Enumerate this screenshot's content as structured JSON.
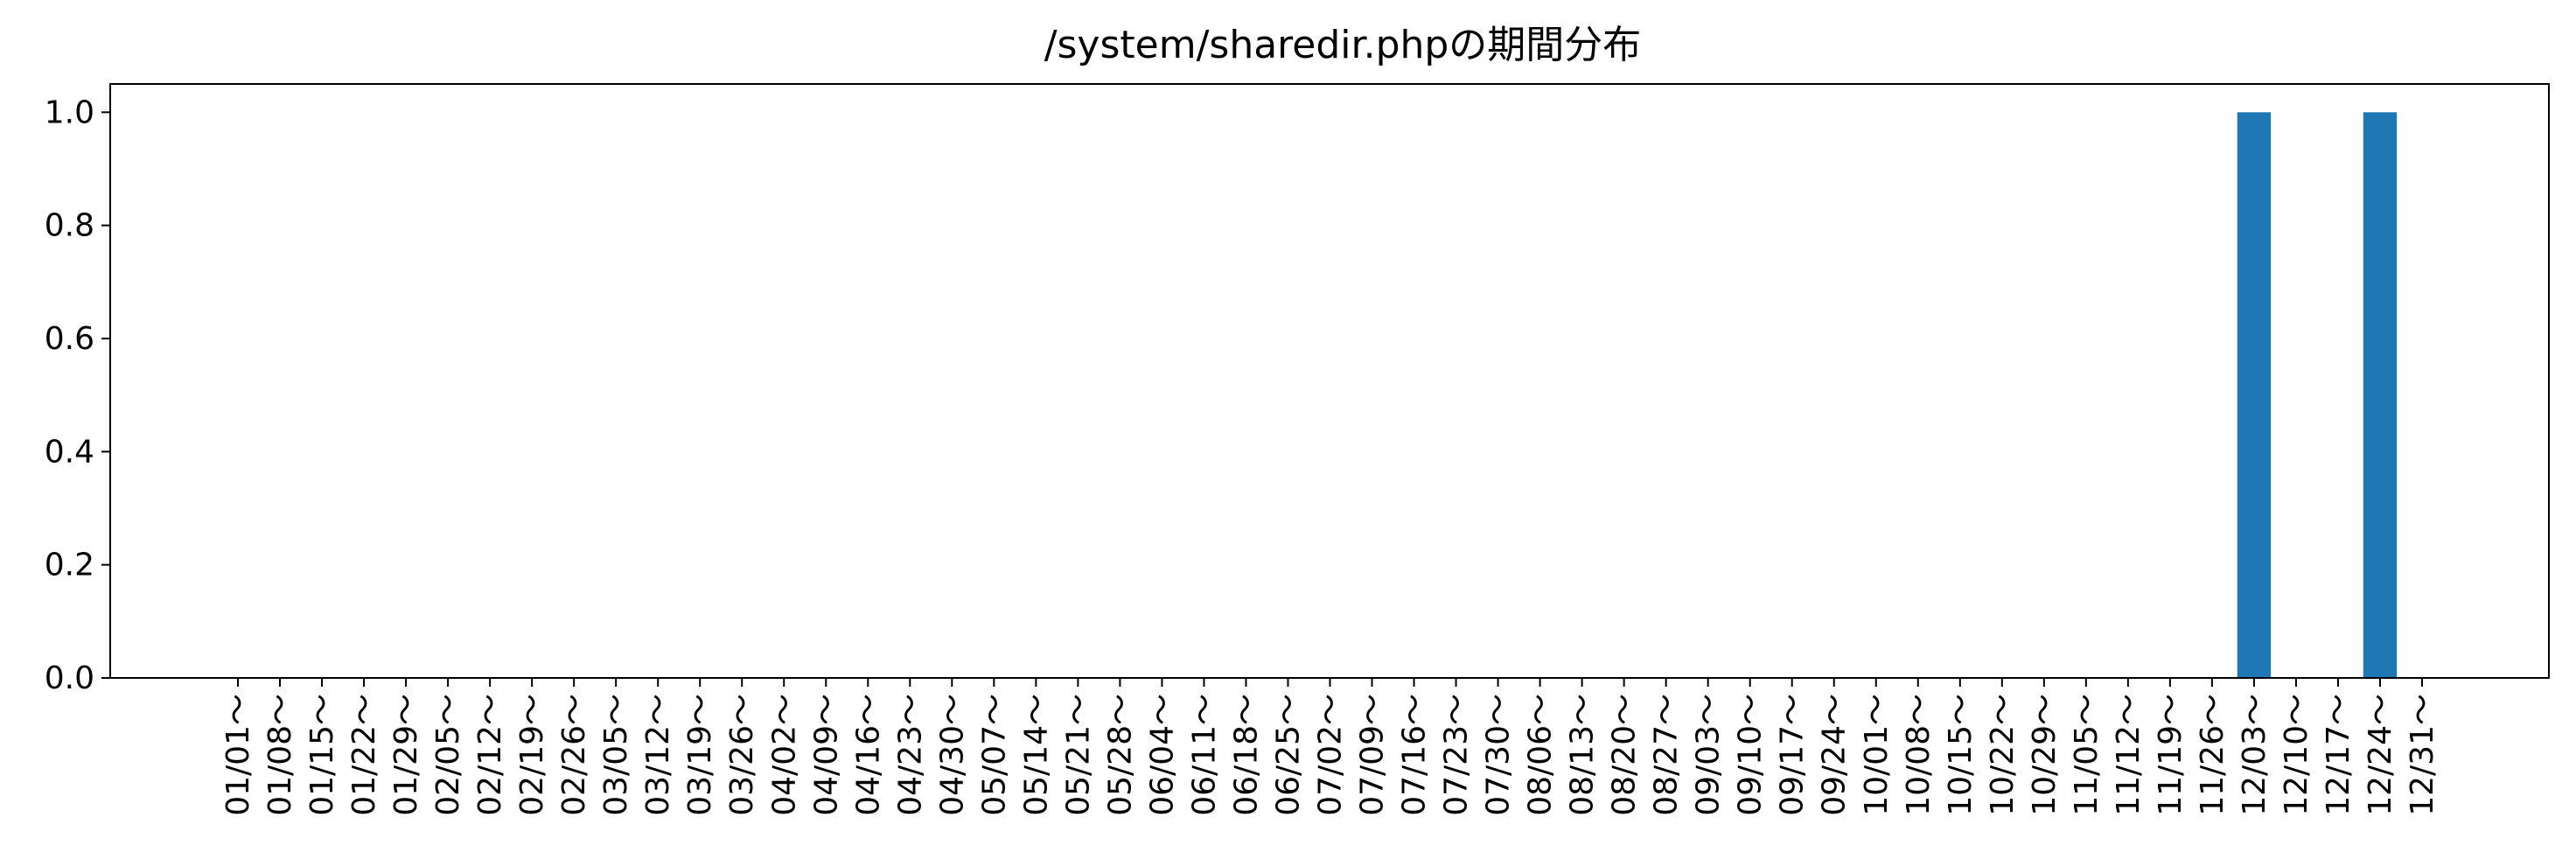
{
  "chart_data": {
    "type": "bar",
    "title": "/system/sharedir.phpの期間分布",
    "xlabel": "",
    "ylabel": "",
    "ylim": [
      0,
      1.05
    ],
    "yticks": [
      "0.0",
      "0.2",
      "0.4",
      "0.6",
      "0.8",
      "1.0"
    ],
    "ytick_values": [
      0,
      0.2,
      0.4,
      0.6,
      0.8,
      1.0
    ],
    "grid": false,
    "bar_color": "#1f77b4",
    "categories": [
      "01/01～",
      "01/08～",
      "01/15～",
      "01/22～",
      "01/29～",
      "02/05～",
      "02/12～",
      "02/19～",
      "02/26～",
      "03/05～",
      "03/12～",
      "03/19～",
      "03/26～",
      "04/02～",
      "04/09～",
      "04/16～",
      "04/23～",
      "04/30～",
      "05/07～",
      "05/14～",
      "05/21～",
      "05/28～",
      "06/04～",
      "06/11～",
      "06/18～",
      "06/25～",
      "07/02～",
      "07/09～",
      "07/16～",
      "07/23～",
      "07/30～",
      "08/06～",
      "08/13～",
      "08/20～",
      "08/27～",
      "09/03～",
      "09/10～",
      "09/17～",
      "09/24～",
      "10/01～",
      "10/08～",
      "10/15～",
      "10/22～",
      "10/29～",
      "11/05～",
      "11/12～",
      "11/19～",
      "11/26～",
      "12/03～",
      "12/10～",
      "12/17～",
      "12/24～",
      "12/31～"
    ],
    "values": [
      0,
      0,
      0,
      0,
      0,
      0,
      0,
      0,
      0,
      0,
      0,
      0,
      0,
      0,
      0,
      0,
      0,
      0,
      0,
      0,
      0,
      0,
      0,
      0,
      0,
      0,
      0,
      0,
      0,
      0,
      0,
      0,
      0,
      0,
      0,
      0,
      0,
      0,
      0,
      0,
      0,
      0,
      0,
      0,
      0,
      0,
      0,
      0,
      1,
      0,
      0,
      1,
      0
    ]
  }
}
